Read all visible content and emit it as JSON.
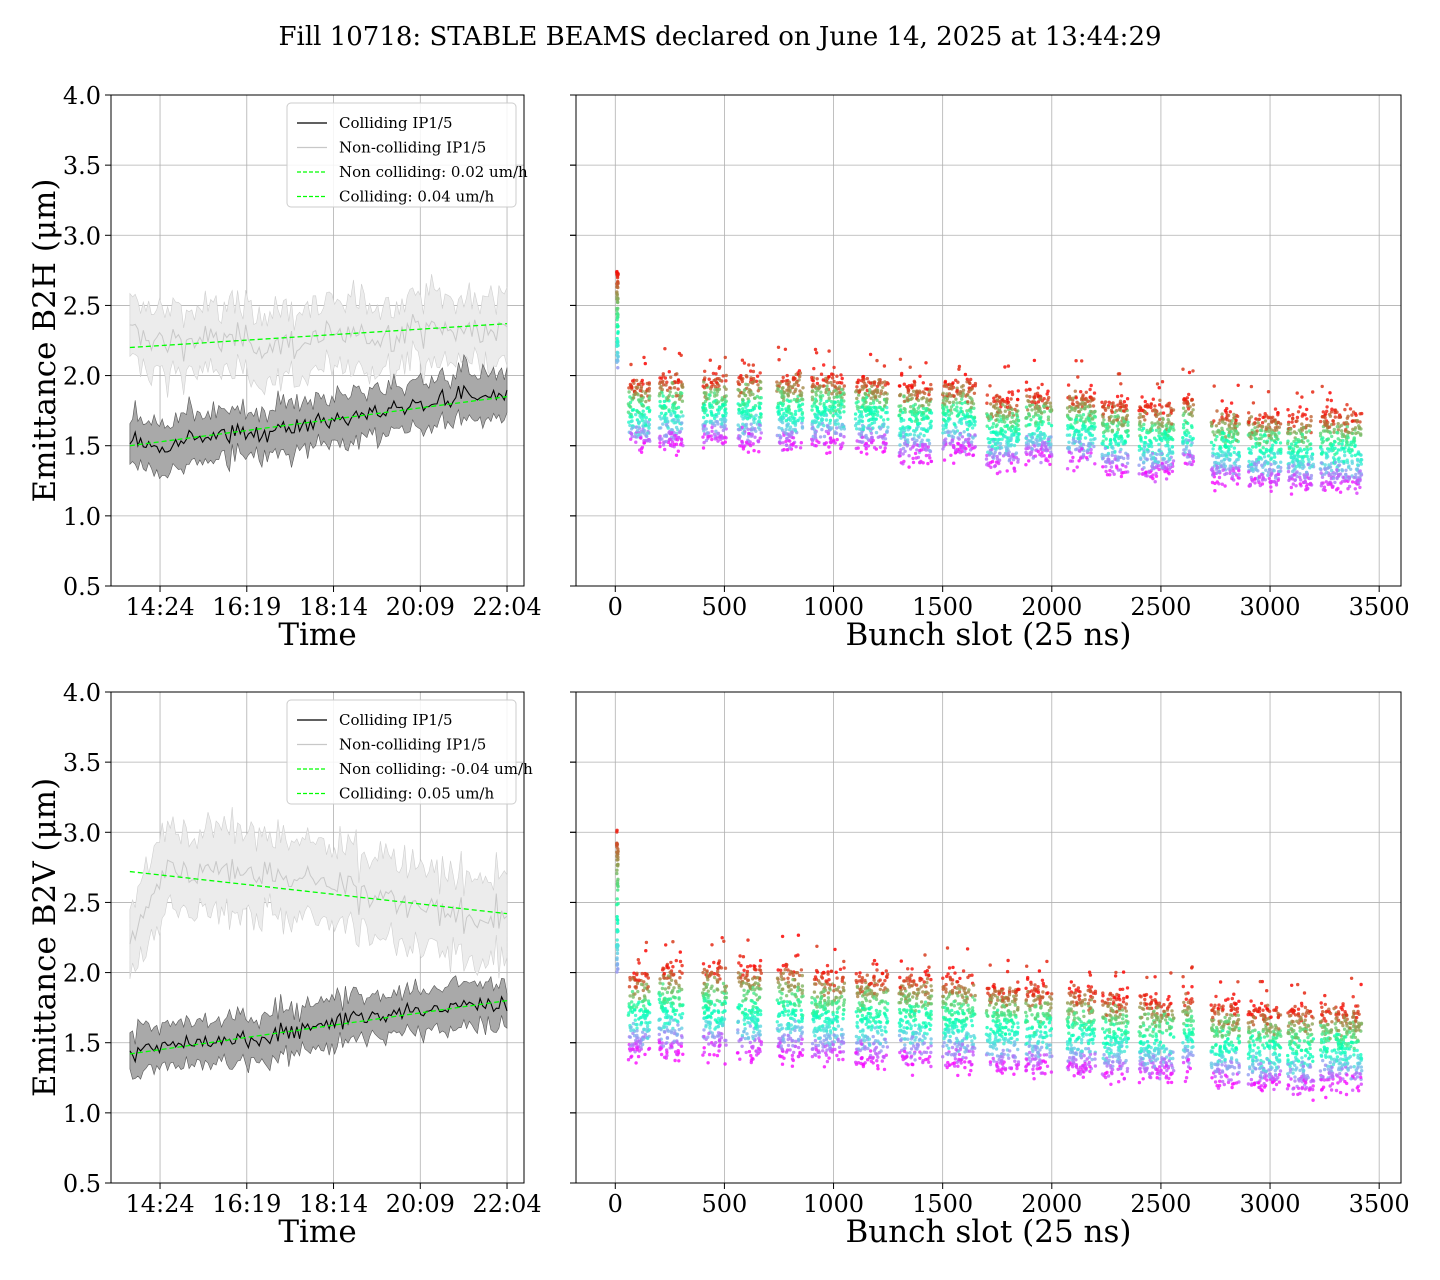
{
  "figure_title": "Fill 10718: STABLE BEAMS declared on June 14, 2025 at 13:44:29",
  "chart_data": [
    {
      "id": "b2h-time",
      "type": "line",
      "ylabel": "Emittance B2H (μm)",
      "xlabel": "Time",
      "ylim": [
        0.5,
        4.0
      ],
      "yticks": [
        "0.5",
        "1.0",
        "1.5",
        "2.0",
        "2.5",
        "3.0",
        "3.5",
        "4.0"
      ],
      "x_range": [
        "13:44",
        "22:04"
      ],
      "xticks": [
        "14:24",
        "16:19",
        "18:14",
        "20:09",
        "22:04"
      ],
      "grid": true,
      "legend_placement": "upper center",
      "legend": [
        "Colliding IP1/5",
        "Non-colliding IP1/5",
        "Non colliding: 0.02 um/h",
        "Colliding: 0.04 um/h"
      ],
      "colors": {
        "colliding": "#000000",
        "colliding_band": "#a9a9a9",
        "non_colliding": "#c8c8c8",
        "non_colliding_band": "#ececec",
        "fit": "#00ff00"
      },
      "series": [
        {
          "name": "Colliding IP1/5",
          "x": [
            "13:44",
            "14:24",
            "15:00",
            "16:19",
            "17:00",
            "18:14",
            "19:00",
            "20:09",
            "21:00",
            "22:04"
          ],
          "y": [
            1.55,
            1.5,
            1.57,
            1.58,
            1.63,
            1.68,
            1.72,
            1.8,
            1.85,
            1.86
          ],
          "band": 0.13
        },
        {
          "name": "Non-colliding IP1/5",
          "x": [
            "13:44",
            "14:24",
            "15:00",
            "16:19",
            "17:00",
            "18:14",
            "19:00",
            "20:09",
            "21:00",
            "22:04"
          ],
          "y": [
            2.3,
            2.25,
            2.26,
            2.24,
            2.22,
            2.27,
            2.26,
            2.35,
            2.32,
            2.3
          ],
          "band": 0.18
        },
        {
          "name": "Non colliding: 0.02 um/h",
          "x": [
            "13:44",
            "22:04"
          ],
          "y": [
            2.2,
            2.37
          ]
        },
        {
          "name": "Colliding: 0.04 um/h",
          "x": [
            "13:44",
            "22:04"
          ],
          "y": [
            1.5,
            1.85
          ]
        }
      ]
    },
    {
      "id": "b2h-bunch",
      "type": "scatter",
      "xlabel": "Bunch slot (25 ns)",
      "ylim": [
        0.5,
        4.0
      ],
      "xlim": [
        -180,
        3600
      ],
      "xticks": [
        "0",
        "500",
        "1000",
        "1500",
        "2000",
        "2500",
        "3000",
        "3500"
      ],
      "grid": true,
      "colormap": "rainbow",
      "pilot": {
        "slot": 10,
        "y_min": 2.05,
        "y_max": 2.75
      },
      "trains": [
        {
          "start": 60,
          "end": 160,
          "low": 1.5,
          "high": 1.95
        },
        {
          "start": 200,
          "end": 310,
          "low": 1.5,
          "high": 2.0
        },
        {
          "start": 400,
          "end": 510,
          "low": 1.52,
          "high": 2.0
        },
        {
          "start": 560,
          "end": 670,
          "low": 1.5,
          "high": 2.0
        },
        {
          "start": 740,
          "end": 860,
          "low": 1.48,
          "high": 2.0
        },
        {
          "start": 900,
          "end": 1050,
          "low": 1.5,
          "high": 2.0
        },
        {
          "start": 1100,
          "end": 1250,
          "low": 1.48,
          "high": 1.98
        },
        {
          "start": 1300,
          "end": 1450,
          "low": 1.4,
          "high": 1.95
        },
        {
          "start": 1500,
          "end": 1650,
          "low": 1.45,
          "high": 1.95
        },
        {
          "start": 1700,
          "end": 1850,
          "low": 1.35,
          "high": 1.85
        },
        {
          "start": 1880,
          "end": 2000,
          "low": 1.4,
          "high": 1.88
        },
        {
          "start": 2070,
          "end": 2200,
          "low": 1.38,
          "high": 1.88
        },
        {
          "start": 2230,
          "end": 2350,
          "low": 1.3,
          "high": 1.82
        },
        {
          "start": 2400,
          "end": 2560,
          "low": 1.28,
          "high": 1.8
        },
        {
          "start": 2600,
          "end": 2650,
          "low": 1.35,
          "high": 1.85
        },
        {
          "start": 2730,
          "end": 2860,
          "low": 1.25,
          "high": 1.75
        },
        {
          "start": 2900,
          "end": 3050,
          "low": 1.22,
          "high": 1.72
        },
        {
          "start": 3080,
          "end": 3200,
          "low": 1.2,
          "high": 1.72
        },
        {
          "start": 3230,
          "end": 3420,
          "low": 1.2,
          "high": 1.75
        }
      ]
    },
    {
      "id": "b2v-time",
      "type": "line",
      "ylabel": "Emittance B2V (μm)",
      "xlabel": "Time",
      "ylim": [
        0.5,
        4.0
      ],
      "yticks": [
        "0.5",
        "1.0",
        "1.5",
        "2.0",
        "2.5",
        "3.0",
        "3.5",
        "4.0"
      ],
      "x_range": [
        "13:44",
        "22:04"
      ],
      "xticks": [
        "14:24",
        "16:19",
        "18:14",
        "20:09",
        "22:04"
      ],
      "grid": true,
      "legend_placement": "upper center",
      "legend": [
        "Colliding IP1/5",
        "Non-colliding IP1/5",
        "Non colliding: -0.04 um/h",
        "Colliding: 0.05 um/h"
      ],
      "colors": {
        "colliding": "#000000",
        "colliding_band": "#a9a9a9",
        "non_colliding": "#c8c8c8",
        "non_colliding_band": "#ececec",
        "fit": "#00ff00"
      },
      "series": [
        {
          "name": "Colliding IP1/5",
          "x": [
            "13:44",
            "14:24",
            "15:00",
            "16:19",
            "17:00",
            "18:14",
            "19:00",
            "20:09",
            "21:00",
            "22:04"
          ],
          "y": [
            1.45,
            1.45,
            1.5,
            1.52,
            1.58,
            1.65,
            1.68,
            1.72,
            1.76,
            1.77
          ],
          "band": 0.12
        },
        {
          "name": "Non-colliding IP1/5",
          "x": [
            "13:44",
            "14:05",
            "14:24",
            "15:00",
            "16:19",
            "17:00",
            "18:14",
            "19:00",
            "20:09",
            "21:00",
            "22:04"
          ],
          "y": [
            2.25,
            2.45,
            2.7,
            2.72,
            2.74,
            2.7,
            2.62,
            2.55,
            2.45,
            2.4,
            2.38
          ],
          "band": 0.22
        },
        {
          "name": "Non colliding: -0.04 um/h",
          "x": [
            "13:44",
            "22:04"
          ],
          "y": [
            2.72,
            2.42
          ]
        },
        {
          "name": "Colliding: 0.05 um/h",
          "x": [
            "13:44",
            "22:04"
          ],
          "y": [
            1.42,
            1.8
          ]
        }
      ]
    },
    {
      "id": "b2v-bunch",
      "type": "scatter",
      "xlabel": "Bunch slot (25 ns)",
      "ylim": [
        0.5,
        4.0
      ],
      "xlim": [
        -180,
        3600
      ],
      "xticks": [
        "0",
        "500",
        "1000",
        "1500",
        "2000",
        "2500",
        "3000",
        "3500"
      ],
      "grid": true,
      "colormap": "rainbow",
      "pilot": {
        "slot": 10,
        "y_min": 2.0,
        "y_max": 3.05
      },
      "trains": [
        {
          "start": 60,
          "end": 160,
          "low": 1.42,
          "high": 2.0
        },
        {
          "start": 200,
          "end": 310,
          "low": 1.42,
          "high": 2.05
        },
        {
          "start": 400,
          "end": 510,
          "low": 1.42,
          "high": 2.05
        },
        {
          "start": 560,
          "end": 670,
          "low": 1.4,
          "high": 2.05
        },
        {
          "start": 740,
          "end": 860,
          "low": 1.4,
          "high": 2.05
        },
        {
          "start": 900,
          "end": 1050,
          "low": 1.38,
          "high": 2.0
        },
        {
          "start": 1100,
          "end": 1250,
          "low": 1.35,
          "high": 2.0
        },
        {
          "start": 1300,
          "end": 1450,
          "low": 1.35,
          "high": 1.98
        },
        {
          "start": 1500,
          "end": 1650,
          "low": 1.32,
          "high": 1.98
        },
        {
          "start": 1700,
          "end": 1850,
          "low": 1.3,
          "high": 1.92
        },
        {
          "start": 1880,
          "end": 2000,
          "low": 1.3,
          "high": 1.9
        },
        {
          "start": 2070,
          "end": 2200,
          "low": 1.28,
          "high": 1.88
        },
        {
          "start": 2230,
          "end": 2350,
          "low": 1.25,
          "high": 1.85
        },
        {
          "start": 2400,
          "end": 2560,
          "low": 1.25,
          "high": 1.82
        },
        {
          "start": 2600,
          "end": 2650,
          "low": 1.28,
          "high": 1.85
        },
        {
          "start": 2730,
          "end": 2860,
          "low": 1.2,
          "high": 1.78
        },
        {
          "start": 2900,
          "end": 3050,
          "low": 1.18,
          "high": 1.75
        },
        {
          "start": 3080,
          "end": 3200,
          "low": 1.15,
          "high": 1.75
        },
        {
          "start": 3230,
          "end": 3420,
          "low": 1.18,
          "high": 1.75
        }
      ]
    }
  ]
}
